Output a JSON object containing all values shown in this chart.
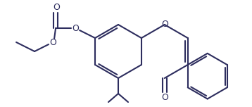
{
  "bg_color": "#ffffff",
  "line_color": "#2d2d5e",
  "line_width": 1.5,
  "figsize": [
    3.58,
    1.52
  ],
  "dpi": 100,
  "xlim": [
    0,
    358
  ],
  "ylim": [
    0,
    152
  ]
}
